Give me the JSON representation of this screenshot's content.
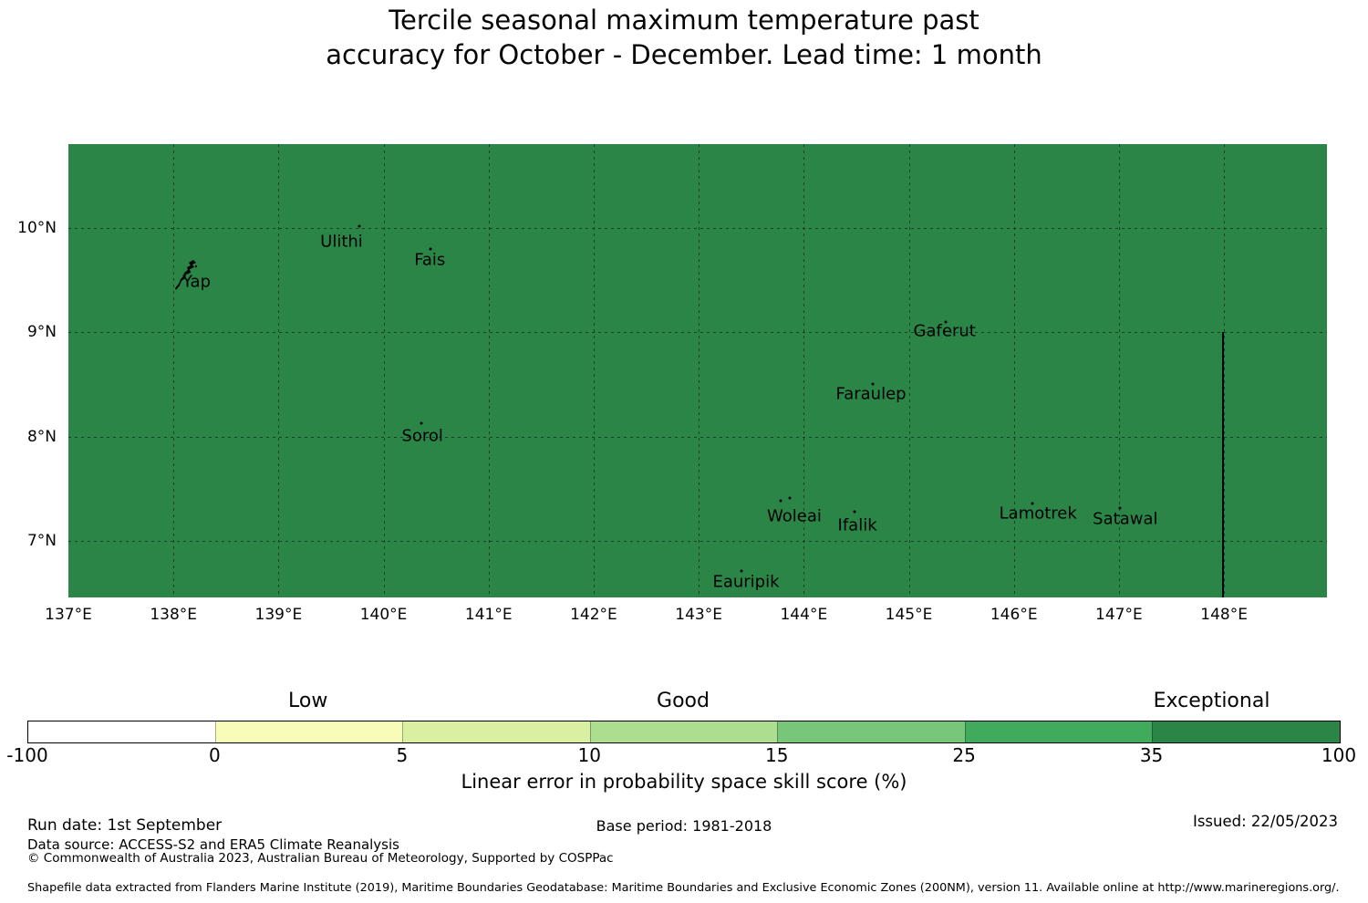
{
  "title": {
    "line1": "Tercile seasonal maximum temperature past",
    "line2": "accuracy for October - December. Lead time: 1 month"
  },
  "map": {
    "fill_color": "#2a8547",
    "extent": {
      "lon_min": 137.0,
      "lon_max": 148.98,
      "lat_min": 6.46,
      "lat_max": 10.8
    },
    "x_ticks": [
      {
        "label": "137°E",
        "lon": 137
      },
      {
        "label": "138°E",
        "lon": 138
      },
      {
        "label": "139°E",
        "lon": 139
      },
      {
        "label": "140°E",
        "lon": 140
      },
      {
        "label": "141°E",
        "lon": 141
      },
      {
        "label": "142°E",
        "lon": 142
      },
      {
        "label": "143°E",
        "lon": 143
      },
      {
        "label": "144°E",
        "lon": 144
      },
      {
        "label": "145°E",
        "lon": 145
      },
      {
        "label": "146°E",
        "lon": 146
      },
      {
        "label": "147°E",
        "lon": 147
      },
      {
        "label": "148°E",
        "lon": 148
      }
    ],
    "y_ticks": [
      {
        "label": "10°N",
        "lat": 10
      },
      {
        "label": "9°N",
        "lat": 9
      },
      {
        "label": "8°N",
        "lat": 8
      },
      {
        "label": "7°N",
        "lat": 7
      }
    ],
    "eez_line": {
      "lon": 147.98,
      "lat_from": 9.0
    },
    "islands": [
      {
        "name": "Yap",
        "lon": 138.22,
        "lat": 9.48,
        "dots": []
      },
      {
        "name": "Ulithi",
        "lon": 139.6,
        "lat": 9.87,
        "dots": [
          [
            139.77,
            10.01
          ]
        ]
      },
      {
        "name": "Fais",
        "lon": 140.44,
        "lat": 9.69,
        "dots": [
          [
            140.45,
            9.8
          ]
        ]
      },
      {
        "name": "Sorol",
        "lon": 140.37,
        "lat": 8.01,
        "dots": [
          [
            140.36,
            8.13
          ]
        ]
      },
      {
        "name": "Gaferut",
        "lon": 145.34,
        "lat": 9.01,
        "dots": [
          [
            145.35,
            9.1
          ]
        ]
      },
      {
        "name": "Faraulep",
        "lon": 144.64,
        "lat": 8.41,
        "dots": [
          [
            144.66,
            8.5
          ]
        ]
      },
      {
        "name": "Woleai",
        "lon": 143.91,
        "lat": 7.24,
        "dots": [
          [
            143.78,
            7.39
          ],
          [
            143.87,
            7.41
          ]
        ]
      },
      {
        "name": "Ifalik",
        "lon": 144.51,
        "lat": 7.15,
        "dots": [
          [
            144.48,
            7.28
          ]
        ]
      },
      {
        "name": "Lamotrek",
        "lon": 146.23,
        "lat": 7.26,
        "dots": [
          [
            146.18,
            7.36
          ]
        ]
      },
      {
        "name": "Satawal",
        "lon": 147.06,
        "lat": 7.21,
        "dots": [
          [
            147.01,
            7.32
          ]
        ]
      },
      {
        "name": "Eauripik",
        "lon": 143.45,
        "lat": 6.61,
        "dots": [
          [
            143.41,
            6.71
          ]
        ]
      }
    ]
  },
  "colorbar": {
    "segments": [
      {
        "from": -100,
        "to": 0,
        "color": "#ffffff"
      },
      {
        "from": 0,
        "to": 5,
        "color": "#f7fcb9"
      },
      {
        "from": 5,
        "to": 10,
        "color": "#d9f0a3"
      },
      {
        "from": 10,
        "to": 15,
        "color": "#addd8e"
      },
      {
        "from": 15,
        "to": 25,
        "color": "#78c679"
      },
      {
        "from": 25,
        "to": 35,
        "color": "#41ab5d"
      },
      {
        "from": 35,
        "to": 100,
        "color": "#2a8547"
      }
    ],
    "tick_labels": [
      "-100",
      "0",
      "5",
      "10",
      "15",
      "25",
      "35",
      "100"
    ],
    "categories": [
      {
        "label": "Low",
        "pos_pct": 21.4
      },
      {
        "label": "Good",
        "pos_pct": 50.0
      },
      {
        "label": "Exceptional",
        "pos_pct": 90.3
      }
    ],
    "caption": "Linear error in probability space skill score (%)"
  },
  "footer": {
    "run_date": "Run date: 1st September",
    "base_period": "Base period: 1981-2018",
    "issued": "Issued: 22/05/2023",
    "data_source": "Data source: ACCESS-S2 and ERA5 Climate Reanalysis",
    "copyright": "© Commonwealth of Australia 2023, Australian Bureau of Meteorology, Supported by COSPPac",
    "shapefile_note": "Shapefile data extracted from Flanders Marine Institute (2019), Maritime Boundaries Geodatabase: Maritime Boundaries and Exclusive Economic Zones (200NM), version 11. Available online at http://www.marineregions.org/."
  },
  "chart_data": {
    "type": "map",
    "title": "Tercile seasonal maximum temperature past accuracy for October - December. Lead time: 1 month",
    "lon_range": [
      137,
      149
    ],
    "lat_range": [
      6.5,
      10.8
    ],
    "value_bins": [
      [
        -100,
        0
      ],
      [
        0,
        5
      ],
      [
        5,
        10
      ],
      [
        10,
        15
      ],
      [
        15,
        25
      ],
      [
        25,
        35
      ],
      [
        35,
        100
      ]
    ],
    "bin_categories": {
      "Low": [
        0,
        5
      ],
      "Good": [
        10,
        15
      ],
      "Exceptional": [
        35,
        100
      ]
    },
    "map_uniform_bin": "35-100 (Exceptional)",
    "islands": [
      "Yap",
      "Ulithi",
      "Fais",
      "Sorol",
      "Gaferut",
      "Faraulep",
      "Woleai",
      "Ifalik",
      "Lamotrek",
      "Satawal",
      "Eauripik"
    ]
  }
}
